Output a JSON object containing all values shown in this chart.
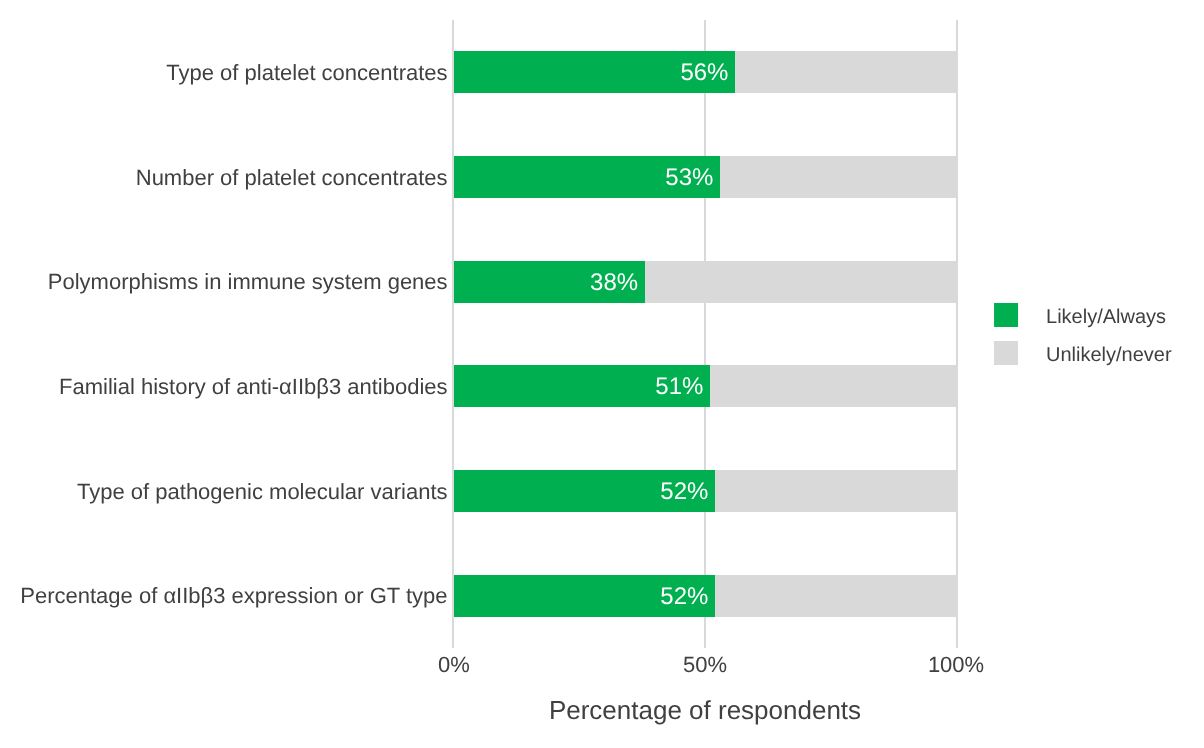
{
  "chart_data": {
    "type": "bar",
    "orientation": "horizontal",
    "stacked": true,
    "categories": [
      "Type of platelet concentrates",
      "Number of platelet concentrates",
      "Polymorphisms in immune system genes",
      "Familial history of anti-αIIbβ3 antibodies",
      "Type of pathogenic molecular variants",
      "Percentage of αIIbβ3 expression or GT type"
    ],
    "series": [
      {
        "name": "Likely/Always",
        "color": "#00b050",
        "values": [
          56,
          53,
          38,
          51,
          52,
          52
        ],
        "value_labels": [
          "56%",
          "53%",
          "38%",
          "51%",
          "52%",
          "52%"
        ]
      },
      {
        "name": "Unlikely/never",
        "color": "#d9d9d9",
        "values": [
          44,
          47,
          62,
          49,
          48,
          48
        ]
      }
    ],
    "xlabel": "Percentage of respondents",
    "xlim": [
      0,
      100
    ],
    "xticks": [
      {
        "value": 0,
        "label": "0%"
      },
      {
        "value": 50,
        "label": "50%"
      },
      {
        "value": 100,
        "label": "100%"
      }
    ],
    "grid": "x",
    "legend": "right"
  }
}
